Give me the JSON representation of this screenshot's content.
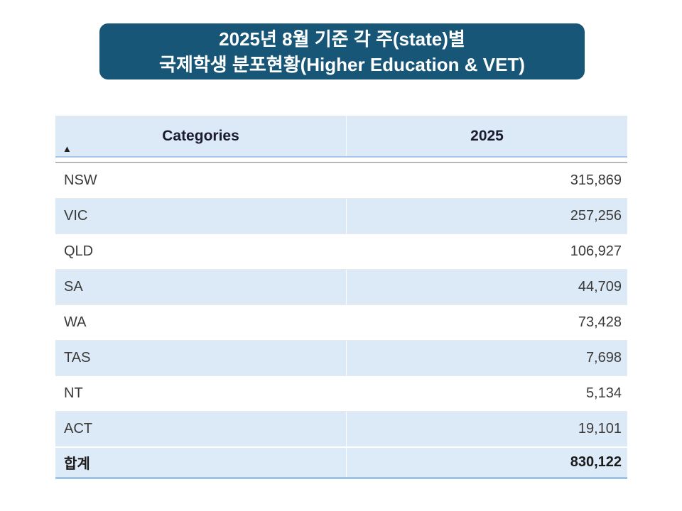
{
  "title": {
    "line1": "2025년 8월 기준 각 주(state)별",
    "line2": "국제학생 분포현황(Higher Education & VET)",
    "bg_color": "#175677",
    "text_color": "#FFFFFF"
  },
  "table": {
    "header": {
      "categories_label": "Categories",
      "year_label": "2025"
    },
    "sort_icon": "▲",
    "rows": [
      {
        "category": "NSW",
        "value": "315,869"
      },
      {
        "category": "VIC",
        "value": "257,256"
      },
      {
        "category": "QLD",
        "value": "106,927"
      },
      {
        "category": "SA",
        "value": "44,709"
      },
      {
        "category": "WA",
        "value": "73,428"
      },
      {
        "category": "TAS",
        "value": "7,698"
      },
      {
        "category": "NT",
        "value": "5,134"
      },
      {
        "category": "ACT",
        "value": "19,101"
      }
    ],
    "total_row": {
      "category": "합계",
      "value": "830,122"
    },
    "colors": {
      "header_bg": "#DCE9F7",
      "alt_row_bg": "#DCE9F7",
      "total_bg": "#DDEAF8",
      "border_blue": "#A9C7E6",
      "total_border": "#9DC3E5"
    }
  },
  "chart_data": {
    "type": "table",
    "title": "2025년 8월 기준 각 주(state)별 국제학생 분포현황(Higher Education & VET)",
    "columns": [
      "Categories",
      "2025"
    ],
    "categories": [
      "NSW",
      "VIC",
      "QLD",
      "SA",
      "WA",
      "TAS",
      "NT",
      "ACT",
      "합계"
    ],
    "values": [
      315869,
      257256,
      106927,
      44709,
      73428,
      7698,
      5134,
      19101,
      830122
    ],
    "sort_indicator": "ascending-on-categories"
  }
}
